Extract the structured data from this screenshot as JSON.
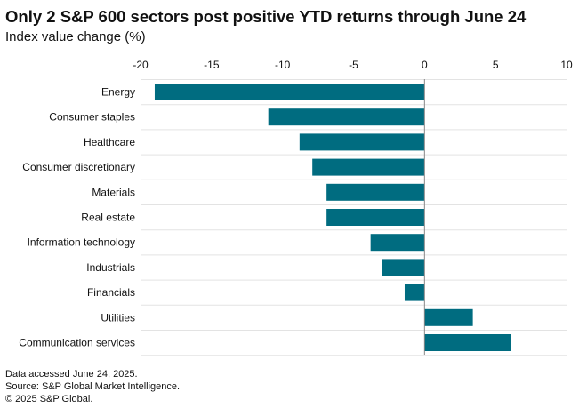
{
  "header": {
    "title": "Only 2 S&P 600 sectors post positive YTD returns through June 24",
    "subtitle": "Index value change (%)"
  },
  "footnotes": {
    "line1": "Data accessed June 24, 2025.",
    "line2": "Source: S&P Global Market Intelligence.",
    "line3": "© 2025 S&P Global."
  },
  "colors": {
    "bar": "#006c80",
    "grid": "#e3e3e3",
    "zero_line": "#888888"
  },
  "chart_data": {
    "type": "bar",
    "orientation": "horizontal",
    "title": "Only 2 S&P 600 sectors post positive YTD returns through June 24",
    "subtitle": "Index value change (%)",
    "xlabel": "",
    "ylabel": "",
    "xlim": [
      -20,
      10
    ],
    "xticks": [
      -20,
      -15,
      -10,
      -5,
      0,
      5,
      10
    ],
    "xtick_labels": [
      "-20",
      "-15",
      "-10",
      "-5",
      "0",
      "5",
      "10"
    ],
    "grid": true,
    "legend": "none",
    "categories": [
      "Energy",
      "Consumer staples",
      "Healthcare",
      "Consumer discretionary",
      "Materials",
      "Real estate",
      "Information technology",
      "Industrials",
      "Financials",
      "Utilities",
      "Communication services"
    ],
    "values": [
      -19.0,
      -11.0,
      -8.8,
      -7.9,
      -6.9,
      -6.9,
      -3.8,
      -3.0,
      -1.4,
      3.4,
      6.1
    ]
  }
}
